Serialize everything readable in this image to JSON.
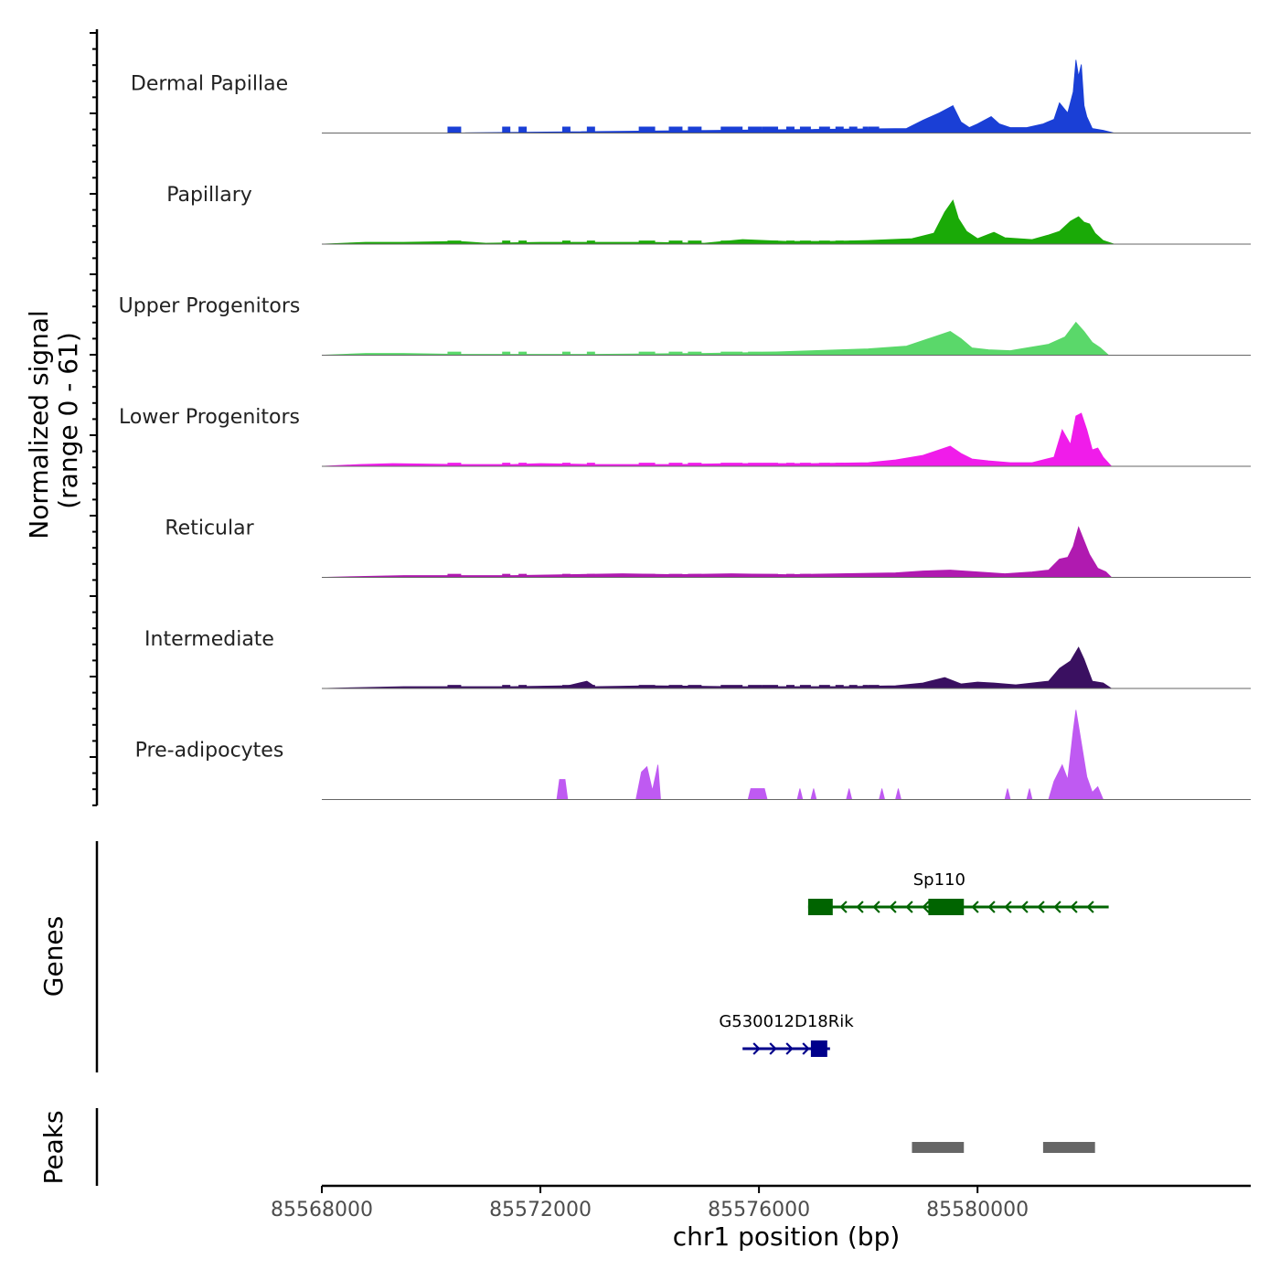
{
  "chart_data": {
    "type": "area",
    "title": "",
    "ylabel": "Normalized signal\n(range 0 - 61)",
    "ylabel_lines": [
      "Normalized signal",
      "(range 0 - 61)"
    ],
    "xlabel": "chr1 position (bp)",
    "ylim": [
      0,
      61
    ],
    "xlim": [
      85568000,
      85585000
    ],
    "x_ticks": [
      85568000,
      85572000,
      85576000,
      85580000
    ],
    "x_tick_labels": [
      "85568000",
      "85572000",
      "85576000",
      "85580000"
    ],
    "signal_regions": [
      {
        "start": 85570300,
        "end": 85570550,
        "level": 0.07
      },
      {
        "start": 85571300,
        "end": 85571450,
        "level": 0.07
      },
      {
        "start": 85571600,
        "end": 85571750,
        "level": 0.07
      },
      {
        "start": 85572400,
        "end": 85572550,
        "level": 0.07
      },
      {
        "start": 85572850,
        "end": 85573000,
        "level": 0.07
      },
      {
        "start": 85573800,
        "end": 85574100,
        "level": 0.07
      },
      {
        "start": 85574350,
        "end": 85574600,
        "level": 0.07
      },
      {
        "start": 85574700,
        "end": 85574950,
        "level": 0.07
      },
      {
        "start": 85575300,
        "end": 85575700,
        "level": 0.07
      },
      {
        "start": 85575800,
        "end": 85576050,
        "level": 0.07
      },
      {
        "start": 85576050,
        "end": 85576350,
        "level": 0.07
      },
      {
        "start": 85576500,
        "end": 85576650,
        "level": 0.07
      },
      {
        "start": 85576750,
        "end": 85576950,
        "level": 0.07
      },
      {
        "start": 85577100,
        "end": 85577300,
        "level": 0.07
      },
      {
        "start": 85577400,
        "end": 85577550,
        "level": 0.07
      },
      {
        "start": 85577650,
        "end": 85577800,
        "level": 0.07
      },
      {
        "start": 85577900,
        "end": 85578000,
        "level": 0.07
      },
      {
        "start": 85578000,
        "end": 85578200,
        "level": 0.07
      }
    ],
    "tracks": [
      {
        "name": "Dermal Papillae",
        "color": "#1a3fd6",
        "profile": [
          [
            85568000,
            0
          ],
          [
            85570300,
            0
          ],
          [
            85578700,
            0.05
          ],
          [
            85579000,
            0.14
          ],
          [
            85579300,
            0.22
          ],
          [
            85579550,
            0.3
          ],
          [
            85579700,
            0.12
          ],
          [
            85579850,
            0.06
          ],
          [
            85580000,
            0.1
          ],
          [
            85580250,
            0.18
          ],
          [
            85580400,
            0.1
          ],
          [
            85580600,
            0.06
          ],
          [
            85580900,
            0.06
          ],
          [
            85581200,
            0.1
          ],
          [
            85581400,
            0.15
          ],
          [
            85581500,
            0.33
          ],
          [
            85581650,
            0.22
          ],
          [
            85581750,
            0.45
          ],
          [
            85581800,
            0.8
          ],
          [
            85581850,
            0.62
          ],
          [
            85581900,
            0.75
          ],
          [
            85581950,
            0.3
          ],
          [
            85582000,
            0.18
          ],
          [
            85582100,
            0.05
          ],
          [
            85582300,
            0.03
          ],
          [
            85582500,
            0
          ]
        ]
      },
      {
        "name": "Papillary",
        "color": "#1aaa07",
        "profile": [
          [
            85568000,
            0
          ],
          [
            85568800,
            0.02
          ],
          [
            85569500,
            0.02
          ],
          [
            85570500,
            0.03
          ],
          [
            85571000,
            0.01
          ],
          [
            85572000,
            0.02
          ],
          [
            85573000,
            0.02
          ],
          [
            85574000,
            0.02
          ],
          [
            85575000,
            0.01
          ],
          [
            85575700,
            0.05
          ],
          [
            85576500,
            0.03
          ],
          [
            85577300,
            0.03
          ],
          [
            85578000,
            0.04
          ],
          [
            85578800,
            0.06
          ],
          [
            85579200,
            0.12
          ],
          [
            85579400,
            0.35
          ],
          [
            85579550,
            0.48
          ],
          [
            85579650,
            0.28
          ],
          [
            85579800,
            0.14
          ],
          [
            85580000,
            0.06
          ],
          [
            85580300,
            0.13
          ],
          [
            85580500,
            0.07
          ],
          [
            85581000,
            0.05
          ],
          [
            85581300,
            0.1
          ],
          [
            85581500,
            0.14
          ],
          [
            85581700,
            0.25
          ],
          [
            85581850,
            0.3
          ],
          [
            85581950,
            0.24
          ],
          [
            85582050,
            0.22
          ],
          [
            85582150,
            0.12
          ],
          [
            85582300,
            0.04
          ],
          [
            85582500,
            0
          ]
        ]
      },
      {
        "name": "Upper Progenitors",
        "color": "#5ad86a",
        "profile": [
          [
            85568000,
            0
          ],
          [
            85568800,
            0.02
          ],
          [
            85569500,
            0.02
          ],
          [
            85570500,
            0.01
          ],
          [
            85572000,
            0.01
          ],
          [
            85573000,
            0.01
          ],
          [
            85575000,
            0.02
          ],
          [
            85576000,
            0.03
          ],
          [
            85577000,
            0.05
          ],
          [
            85578000,
            0.07
          ],
          [
            85578700,
            0.1
          ],
          [
            85579200,
            0.2
          ],
          [
            85579500,
            0.26
          ],
          [
            85579700,
            0.18
          ],
          [
            85579900,
            0.08
          ],
          [
            85580200,
            0.06
          ],
          [
            85580600,
            0.05
          ],
          [
            85581000,
            0.09
          ],
          [
            85581300,
            0.12
          ],
          [
            85581600,
            0.2
          ],
          [
            85581800,
            0.36
          ],
          [
            85581950,
            0.26
          ],
          [
            85582100,
            0.14
          ],
          [
            85582250,
            0.08
          ],
          [
            85582400,
            0
          ]
        ]
      },
      {
        "name": "Lower Progenitors",
        "color": "#f01cea",
        "profile": [
          [
            85568000,
            0
          ],
          [
            85568700,
            0.02
          ],
          [
            85569300,
            0.03
          ],
          [
            85570500,
            0.02
          ],
          [
            85571500,
            0.02
          ],
          [
            85572000,
            0.03
          ],
          [
            85573000,
            0.02
          ],
          [
            85574500,
            0.02
          ],
          [
            85575500,
            0.03
          ],
          [
            85577000,
            0.03
          ],
          [
            85578000,
            0.04
          ],
          [
            85578500,
            0.07
          ],
          [
            85579000,
            0.12
          ],
          [
            85579300,
            0.18
          ],
          [
            85579500,
            0.22
          ],
          [
            85579700,
            0.14
          ],
          [
            85579900,
            0.08
          ],
          [
            85580200,
            0.06
          ],
          [
            85580600,
            0.04
          ],
          [
            85581000,
            0.04
          ],
          [
            85581400,
            0.1
          ],
          [
            85581550,
            0.4
          ],
          [
            85581700,
            0.24
          ],
          [
            85581800,
            0.55
          ],
          [
            85581900,
            0.58
          ],
          [
            85582000,
            0.4
          ],
          [
            85582100,
            0.18
          ],
          [
            85582200,
            0.2
          ],
          [
            85582300,
            0.1
          ],
          [
            85582450,
            0
          ]
        ]
      },
      {
        "name": "Reticular",
        "color": "#b01ab0",
        "profile": [
          [
            85568000,
            0
          ],
          [
            85568700,
            0.01
          ],
          [
            85569500,
            0.02
          ],
          [
            85570500,
            0.02
          ],
          [
            85571500,
            0.02
          ],
          [
            85572500,
            0.03
          ],
          [
            85573500,
            0.04
          ],
          [
            85574500,
            0.03
          ],
          [
            85575500,
            0.04
          ],
          [
            85576500,
            0.03
          ],
          [
            85577500,
            0.04
          ],
          [
            85578500,
            0.05
          ],
          [
            85579000,
            0.07
          ],
          [
            85579500,
            0.08
          ],
          [
            85580000,
            0.06
          ],
          [
            85580500,
            0.04
          ],
          [
            85581000,
            0.06
          ],
          [
            85581300,
            0.08
          ],
          [
            85581500,
            0.2
          ],
          [
            85581650,
            0.22
          ],
          [
            85581750,
            0.34
          ],
          [
            85581850,
            0.55
          ],
          [
            85581950,
            0.4
          ],
          [
            85582050,
            0.25
          ],
          [
            85582200,
            0.1
          ],
          [
            85582350,
            0.06
          ],
          [
            85582450,
            0
          ]
        ]
      },
      {
        "name": "Intermediate",
        "color": "#3a1061",
        "profile": [
          [
            85568000,
            0
          ],
          [
            85568700,
            0.01
          ],
          [
            85569500,
            0.02
          ],
          [
            85570500,
            0.02
          ],
          [
            85571500,
            0.02
          ],
          [
            85572500,
            0.03
          ],
          [
            85572850,
            0.08
          ],
          [
            85573000,
            0.02
          ],
          [
            85574000,
            0.03
          ],
          [
            85575500,
            0.02
          ],
          [
            85576500,
            0.02
          ],
          [
            85577500,
            0.02
          ],
          [
            85578500,
            0.03
          ],
          [
            85579000,
            0.06
          ],
          [
            85579400,
            0.12
          ],
          [
            85579700,
            0.05
          ],
          [
            85580000,
            0.07
          ],
          [
            85580300,
            0.06
          ],
          [
            85580700,
            0.04
          ],
          [
            85581000,
            0.06
          ],
          [
            85581300,
            0.08
          ],
          [
            85581500,
            0.22
          ],
          [
            85581700,
            0.3
          ],
          [
            85581850,
            0.45
          ],
          [
            85581950,
            0.32
          ],
          [
            85582100,
            0.08
          ],
          [
            85582300,
            0.06
          ],
          [
            85582450,
            0
          ]
        ]
      },
      {
        "name": "Pre-adipocytes",
        "color": "#bf5af2",
        "profile": [
          [
            85568000,
            0
          ],
          [
            85572300,
            0
          ],
          [
            85572350,
            0.22
          ],
          [
            85572450,
            0.22
          ],
          [
            85572500,
            0
          ],
          [
            85573750,
            0
          ],
          [
            85573850,
            0.3
          ],
          [
            85573950,
            0.36
          ],
          [
            85574050,
            0.1
          ],
          [
            85574150,
            0.38
          ],
          [
            85574200,
            0
          ],
          [
            85575800,
            0
          ],
          [
            85575850,
            0.12
          ],
          [
            85576100,
            0.12
          ],
          [
            85576150,
            0
          ],
          [
            85576700,
            0
          ],
          [
            85576750,
            0.12
          ],
          [
            85576800,
            0
          ],
          [
            85576950,
            0
          ],
          [
            85577000,
            0.12
          ],
          [
            85577050,
            0
          ],
          [
            85577600,
            0
          ],
          [
            85577650,
            0.12
          ],
          [
            85577700,
            0
          ],
          [
            85578200,
            0
          ],
          [
            85578250,
            0.12
          ],
          [
            85578300,
            0
          ],
          [
            85578500,
            0
          ],
          [
            85578550,
            0.12
          ],
          [
            85578600,
            0
          ],
          [
            85580500,
            0
          ],
          [
            85580550,
            0.12
          ],
          [
            85580600,
            0
          ],
          [
            85580900,
            0
          ],
          [
            85580950,
            0.12
          ],
          [
            85581000,
            0
          ],
          [
            85581300,
            0
          ],
          [
            85581400,
            0.2
          ],
          [
            85581550,
            0.38
          ],
          [
            85581650,
            0.22
          ],
          [
            85581750,
            0.75
          ],
          [
            85581800,
            0.98
          ],
          [
            85581900,
            0.62
          ],
          [
            85582000,
            0.25
          ],
          [
            85582100,
            0.08
          ],
          [
            85582200,
            0.14
          ],
          [
            85582300,
            0
          ]
        ]
      }
    ],
    "genes": [
      {
        "name": "Sp110",
        "strand": "-",
        "start": 85576900,
        "end": 85582400,
        "color": "#006400",
        "exons": [
          [
            85576900,
            85577350
          ],
          [
            85579100,
            85579750
          ]
        ]
      },
      {
        "name": "G530012D18Rik",
        "strand": "+",
        "start": 85575700,
        "end": 85577300,
        "color": "#00008b",
        "exons": [
          [
            85576950,
            85577250
          ]
        ]
      }
    ],
    "peaks": [
      {
        "start": 85578800,
        "end": 85579750
      },
      {
        "start": 85581200,
        "end": 85582150
      }
    ],
    "panel_labels": {
      "genes": "Genes",
      "peaks": "Peaks"
    }
  }
}
